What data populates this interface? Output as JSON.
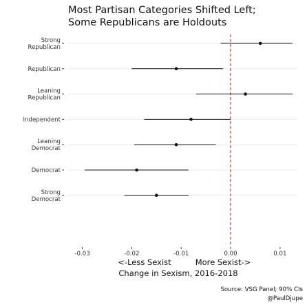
{
  "chart_data": {
    "type": "dot-interval",
    "title": [
      "Most Partisan Categories Shifted Left;",
      "Some Republicans are Holdouts"
    ],
    "xlabel": "Change in Sexism, 2016-2018",
    "direction_labels": {
      "left": "<-Less Sexist",
      "right": "More Sexist->"
    },
    "caption": [
      "Source: VSG Panel; 90% CIs",
      "@PaulDjupe"
    ],
    "xlim": [
      -0.03,
      0.01
    ],
    "ticks": [
      {
        "value": -0.03,
        "label": "-0.03"
      },
      {
        "value": -0.02,
        "label": "-0.02"
      },
      {
        "value": -0.01,
        "label": "-0.01"
      },
      {
        "value": 0.0,
        "label": "0.00"
      },
      {
        "value": 0.01,
        "label": "0.01"
      }
    ],
    "reference_line": {
      "x": 0.0,
      "color": "#cc3333",
      "style": "dashed"
    },
    "categories": [
      {
        "label": [
          "Strong",
          "Republican"
        ],
        "estimate": 0.006,
        "low": -0.002,
        "high": 0.0125
      },
      {
        "label": [
          "Republican"
        ],
        "estimate": -0.011,
        "low": -0.02,
        "high": -0.0015
      },
      {
        "label": [
          "Leaning",
          "Republican"
        ],
        "estimate": 0.003,
        "low": -0.007,
        "high": 0.0125
      },
      {
        "label": [
          "Independent"
        ],
        "estimate": -0.008,
        "low": -0.0175,
        "high": 0.0
      },
      {
        "label": [
          "Leaning",
          "Democrat"
        ],
        "estimate": -0.011,
        "low": -0.0195,
        "high": -0.003
      },
      {
        "label": [
          "Democrat"
        ],
        "estimate": -0.019,
        "low": -0.0295,
        "high": -0.0085
      },
      {
        "label": [
          "Strong",
          "Democrat"
        ],
        "estimate": -0.015,
        "low": -0.0215,
        "high": -0.0085
      }
    ],
    "colors": {
      "point": "#111111",
      "interval": "#111111",
      "grid": "#ebebeb",
      "reference": "#cc3333"
    }
  }
}
